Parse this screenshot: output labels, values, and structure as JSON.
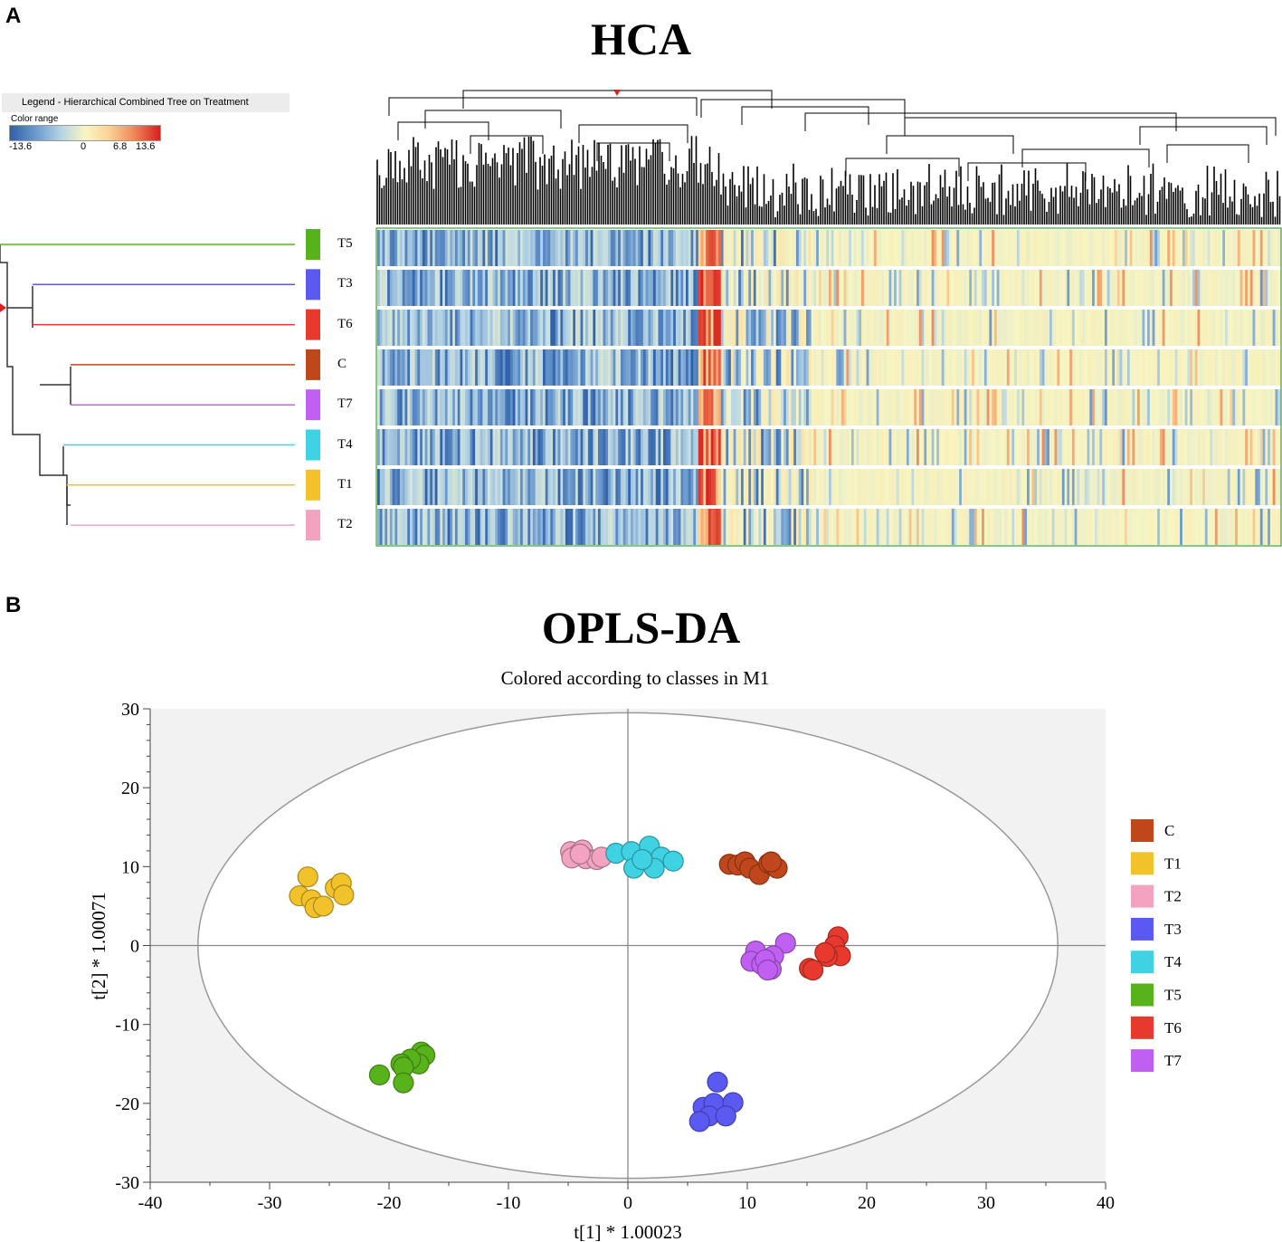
{
  "panels": {
    "a": "A",
    "b": "B"
  },
  "hca": {
    "title": "HCA",
    "legend_title": "Legend - Hierarchical Combined Tree on Treatment",
    "color_range_label": "Color range",
    "color_ticks": [
      "-13.6",
      "0",
      "6.8",
      "13.6"
    ],
    "row_labels": [
      "T5",
      "T3",
      "T6",
      "C",
      "T7",
      "T4",
      "T1",
      "T2"
    ]
  },
  "opls": {
    "title": "OPLS-DA",
    "subtitle": "Colored according to classes in M1",
    "xlabel": "t[1] * 1.00023",
    "ylabel": "t[2] * 1.00071"
  },
  "colors": {
    "C": "#c0461b",
    "T1": "#f2c22a",
    "T2": "#f2a3c0",
    "T3": "#5a5af2",
    "T4": "#3fd2e3",
    "T5": "#58b31a",
    "T6": "#e8392e",
    "T7": "#c060f2"
  },
  "chart_data": [
    {
      "type": "heatmap",
      "title": "HCA",
      "rows": [
        "T5",
        "T3",
        "T6",
        "C",
        "T7",
        "T4",
        "T1",
        "T2"
      ],
      "color_scale": {
        "min": -13.6,
        "mid": 0,
        "max": 13.6,
        "ticks": [
          -13.6,
          0,
          6.8,
          13.6
        ]
      }
    },
    {
      "type": "scatter",
      "title": "OPLS-DA",
      "subtitle": "Colored according to classes in M1",
      "xlabel": "t[1] * 1.00023",
      "ylabel": "t[2] * 1.00071",
      "xlim": [
        -40,
        40
      ],
      "ylim": [
        -30,
        30
      ],
      "xticks": [
        -40,
        -30,
        -20,
        -10,
        0,
        10,
        20,
        30,
        40
      ],
      "yticks": [
        -30,
        -20,
        -10,
        0,
        10,
        20,
        30
      ],
      "legend": [
        "C",
        "T1",
        "T2",
        "T3",
        "T4",
        "T5",
        "T6",
        "T7"
      ],
      "ellipse": {
        "rx": 36,
        "ry": 29.5
      },
      "series": [
        {
          "name": "C",
          "points": [
            [
              8.5,
              10.3
            ],
            [
              9.2,
              10.2
            ],
            [
              9.8,
              10.6
            ],
            [
              10.2,
              9.8
            ],
            [
              11.0,
              9.0
            ],
            [
              11.8,
              10.4
            ],
            [
              12.2,
              10.1
            ],
            [
              12.5,
              9.8
            ],
            [
              12.0,
              10.6
            ]
          ]
        },
        {
          "name": "T1",
          "points": [
            [
              -26.8,
              8.7
            ],
            [
              -27.5,
              6.3
            ],
            [
              -26.5,
              5.8
            ],
            [
              -26.2,
              4.8
            ],
            [
              -25.5,
              5.0
            ],
            [
              -24.5,
              7.3
            ],
            [
              -24.0,
              7.9
            ],
            [
              -23.8,
              6.4
            ]
          ]
        },
        {
          "name": "T2",
          "points": [
            [
              -4.8,
              11.9
            ],
            [
              -4.2,
              11.5
            ],
            [
              -3.8,
              12.1
            ],
            [
              -3.5,
              11.0
            ],
            [
              -2.6,
              10.9
            ],
            [
              -2.2,
              11.2
            ],
            [
              -4.7,
              11.1
            ],
            [
              -4.0,
              11.6
            ]
          ]
        },
        {
          "name": "T3",
          "points": [
            [
              7.5,
              -17.3
            ],
            [
              6.3,
              -20.5
            ],
            [
              7.2,
              -20.0
            ],
            [
              8.8,
              -19.9
            ],
            [
              6.8,
              -21.6
            ],
            [
              6.0,
              -22.3
            ],
            [
              8.2,
              -21.6
            ]
          ]
        },
        {
          "name": "T4",
          "points": [
            [
              -1.0,
              11.7
            ],
            [
              0.3,
              11.9
            ],
            [
              1.8,
              12.6
            ],
            [
              2.8,
              11.2
            ],
            [
              3.8,
              10.7
            ],
            [
              2.2,
              9.8
            ],
            [
              0.5,
              9.8
            ],
            [
              1.2,
              10.9
            ]
          ]
        },
        {
          "name": "T5",
          "points": [
            [
              -17.3,
              -13.5
            ],
            [
              -17.0,
              -13.9
            ],
            [
              -17.5,
              -15.0
            ],
            [
              -18.2,
              -14.4
            ],
            [
              -19.0,
              -15.0
            ],
            [
              -18.8,
              -15.4
            ],
            [
              -20.8,
              -16.4
            ],
            [
              -18.8,
              -17.4
            ]
          ]
        },
        {
          "name": "T6",
          "points": [
            [
              17.6,
              1.1
            ],
            [
              17.3,
              0.0
            ],
            [
              17.8,
              -1.3
            ],
            [
              16.7,
              -1.4
            ],
            [
              15.2,
              -2.9
            ],
            [
              15.5,
              -3.1
            ],
            [
              16.5,
              -0.9
            ]
          ]
        },
        {
          "name": "T7",
          "points": [
            [
              13.2,
              0.3
            ],
            [
              12.2,
              -1.3
            ],
            [
              10.7,
              -0.7
            ],
            [
              10.3,
              -2.0
            ],
            [
              11.2,
              -2.4
            ],
            [
              12.0,
              -3.0
            ],
            [
              11.5,
              -1.8
            ],
            [
              11.7,
              -3.1
            ]
          ]
        }
      ]
    }
  ]
}
